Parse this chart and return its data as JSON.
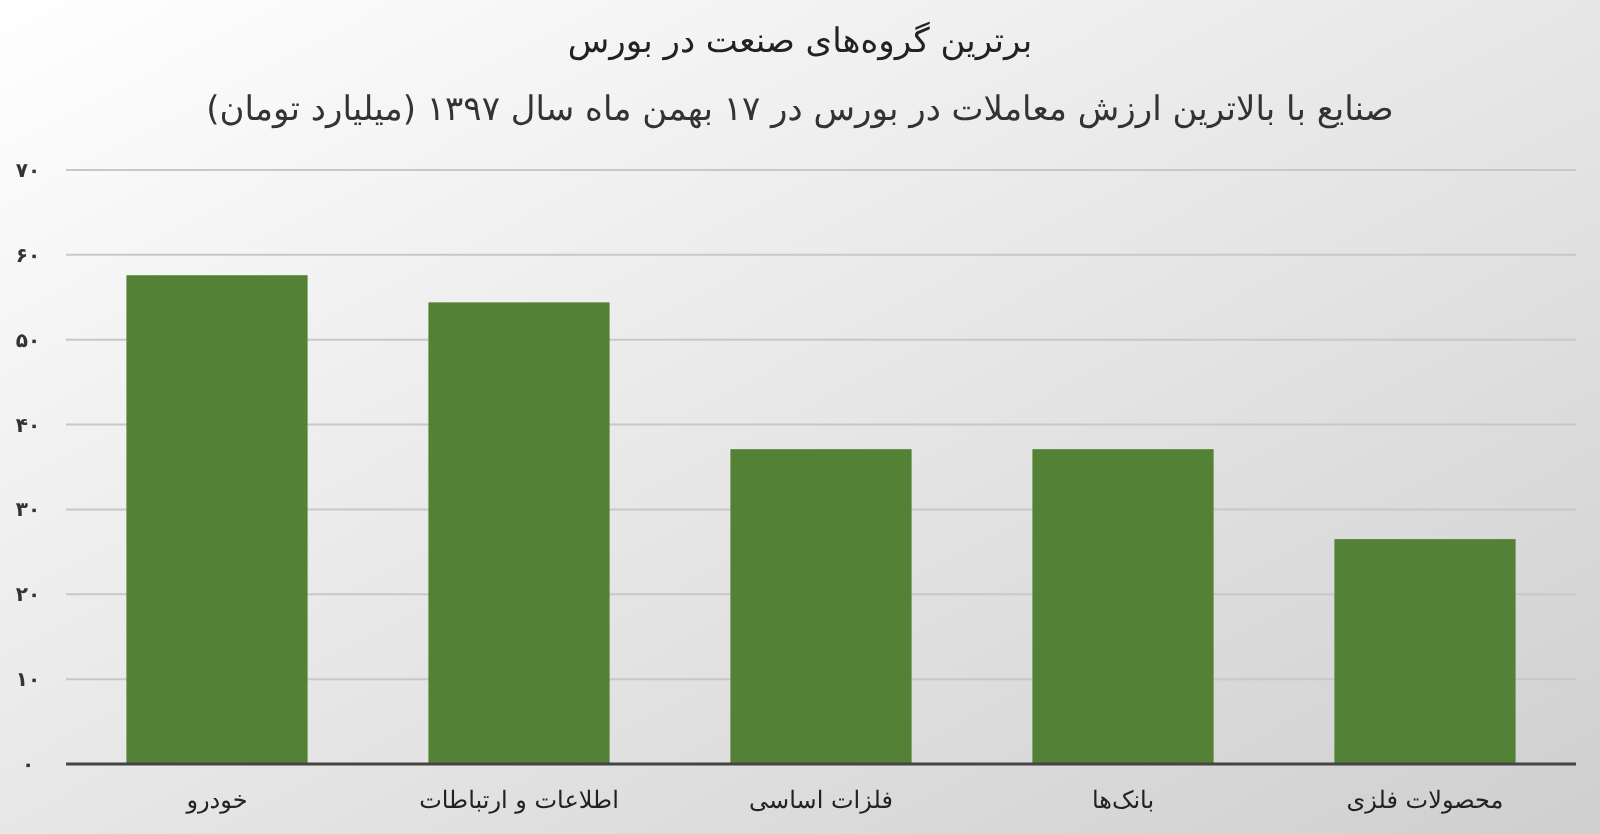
{
  "chart_data": {
    "type": "bar",
    "title": "برترین گروه‌های صنعت در بورس",
    "subtitle": "صنایع با بالاترین ارزش معاملات در بورس در ۱۷ بهمن ماه سال ۱۳۹۷ (میلیارد تومان)",
    "categories": [
      "خودرو",
      "اطلاعات و ارتباطات",
      "فلزات اساسی",
      "بانک‌ها",
      "محصولات فلزی"
    ],
    "values": [
      57.6,
      54.4,
      37.1,
      37.1,
      26.5
    ],
    "color": "#538135",
    "ylim": [
      0,
      70
    ],
    "yticks": [
      {
        "value": 0,
        "label": "۰"
      },
      {
        "value": 10,
        "label": "۱۰"
      },
      {
        "value": 20,
        "label": "۲۰"
      },
      {
        "value": 30,
        "label": "۳۰"
      },
      {
        "value": 40,
        "label": "۴۰"
      },
      {
        "value": 50,
        "label": "۵۰"
      },
      {
        "value": 60,
        "label": "۶۰"
      },
      {
        "value": 70,
        "label": "۷۰"
      }
    ],
    "grid": "y"
  }
}
